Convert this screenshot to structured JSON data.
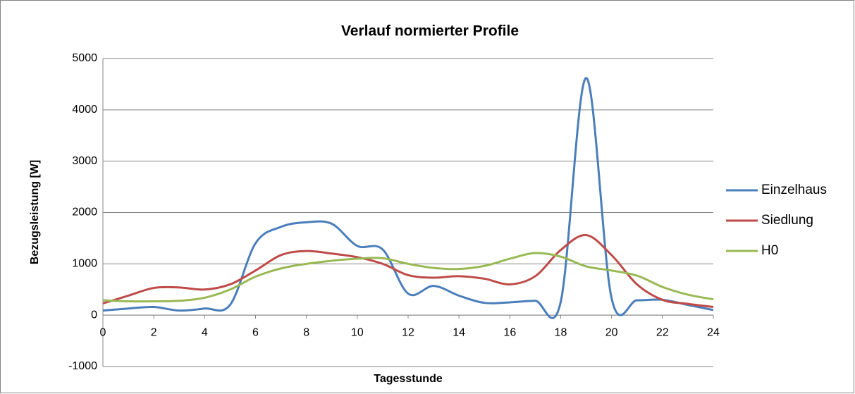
{
  "chart_data": {
    "type": "line",
    "title": "Verlauf normierter Profile",
    "x_label": "Tagesstunde",
    "y_label": "Bezugsleistung [W]",
    "x": [
      0,
      1,
      2,
      3,
      4,
      5,
      6,
      7,
      8,
      9,
      10,
      11,
      12,
      13,
      14,
      15,
      16,
      17,
      18,
      19,
      20,
      21,
      22,
      23,
      24
    ],
    "series": [
      {
        "name": "Einzelhaus",
        "color": "#4a7ebb",
        "values": [
          90,
          130,
          160,
          90,
          130,
          200,
          1400,
          1720,
          1810,
          1780,
          1350,
          1280,
          420,
          570,
          380,
          240,
          250,
          280,
          260,
          4620,
          330,
          290,
          300,
          200,
          100
        ]
      },
      {
        "name": "Siedlung",
        "color": "#be4b48",
        "values": [
          230,
          380,
          530,
          540,
          500,
          600,
          870,
          1170,
          1250,
          1200,
          1130,
          1000,
          780,
          730,
          760,
          710,
          600,
          760,
          1270,
          1560,
          1170,
          600,
          300,
          220,
          160
        ]
      },
      {
        "name": "H0",
        "color": "#98b954",
        "values": [
          290,
          270,
          270,
          280,
          340,
          500,
          750,
          910,
          1000,
          1060,
          1100,
          1110,
          1000,
          920,
          900,
          960,
          1100,
          1210,
          1140,
          950,
          870,
          770,
          550,
          400,
          310
        ]
      }
    ],
    "xlim": [
      0,
      24
    ],
    "xticks": [
      0,
      2,
      4,
      6,
      8,
      10,
      12,
      14,
      16,
      18,
      20,
      22,
      24
    ],
    "ylim": [
      -1000,
      5000
    ],
    "yticks": [
      -1000,
      0,
      1000,
      2000,
      3000,
      4000,
      5000
    ],
    "grid": true,
    "legend": "right"
  }
}
